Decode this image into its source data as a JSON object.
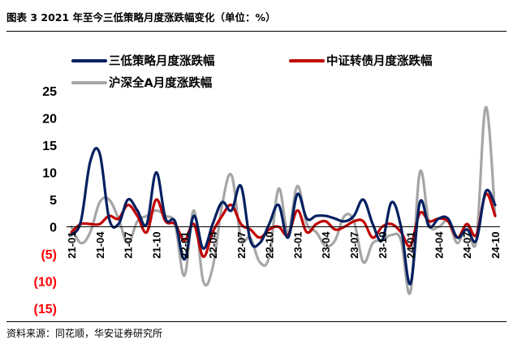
{
  "figure_title": "图表 3  2021 年至今三低策略月度涨跌幅变化（单位：%）",
  "source": "资料来源：同花顺，华安证券研究所",
  "chart_data": {
    "type": "line",
    "title": "",
    "xlabel": "",
    "ylabel": "",
    "ylim": [
      -15,
      25
    ],
    "yticks": [
      {
        "value": 25,
        "label": "25"
      },
      {
        "value": 20,
        "label": "20"
      },
      {
        "value": 15,
        "label": "15"
      },
      {
        "value": 10,
        "label": "10"
      },
      {
        "value": 5,
        "label": "5"
      },
      {
        "value": 0,
        "label": "0"
      },
      {
        "value": -5,
        "label": "(5)"
      },
      {
        "value": -10,
        "label": "(10)"
      },
      {
        "value": -15,
        "label": "(15)"
      }
    ],
    "negative_tick_color": "#ff0000",
    "grid": false,
    "legend_position": "top",
    "x": [
      "21-01",
      "21-02",
      "21-03",
      "21-04",
      "21-05",
      "21-06",
      "21-07",
      "21-08",
      "21-09",
      "21-10",
      "21-11",
      "21-12",
      "22-01",
      "22-02",
      "22-03",
      "22-04",
      "22-05",
      "22-06",
      "22-07",
      "22-08",
      "22-09",
      "22-10",
      "22-11",
      "22-12",
      "23-01",
      "23-02",
      "23-03",
      "23-04",
      "23-05",
      "23-06",
      "23-07",
      "23-08",
      "23-09",
      "23-10",
      "23-11",
      "23-12",
      "24-01",
      "24-02",
      "24-03",
      "24-04",
      "24-05",
      "24-06",
      "24-07",
      "24-08",
      "24-09",
      "24-10"
    ],
    "x_tick_labels": [
      "21-01",
      "21-04",
      "21-07",
      "21-10",
      "22-01",
      "22-04",
      "22-07",
      "22-10",
      "23-01",
      "23-04",
      "23-07",
      "23-10",
      "24-01",
      "24-04",
      "24-07",
      "24-10"
    ],
    "series": [
      {
        "name": "三低策略月度涨跌幅",
        "color": "#002060",
        "values": [
          -1.5,
          1.0,
          12.0,
          13.5,
          1.5,
          0.5,
          5.0,
          3.0,
          0.5,
          10.0,
          1.5,
          1.0,
          -6.0,
          2.0,
          -4.0,
          0.5,
          4.5,
          3.0,
          7.5,
          -2.5,
          -3.0,
          0.5,
          4.0,
          -2.0,
          6.0,
          1.5,
          2.0,
          2.0,
          1.5,
          1.0,
          2.0,
          5.0,
          0.5,
          -2.5,
          4.5,
          0.0,
          -10.5,
          4.5,
          0.0,
          1.5,
          1.5,
          -2.0,
          -0.5,
          -2.5,
          6.5,
          4.0
        ]
      },
      {
        "name": "中证转债月度涨跌幅",
        "color": "#c00000",
        "values": [
          -1.0,
          0.5,
          0.5,
          0.5,
          2.0,
          1.5,
          4.0,
          2.0,
          -1.0,
          5.0,
          1.0,
          0.5,
          -2.5,
          0.5,
          -5.5,
          -1.0,
          2.0,
          4.0,
          0.5,
          -0.5,
          -2.0,
          -0.5,
          0.0,
          -1.5,
          3.0,
          -1.0,
          0.5,
          1.0,
          -0.5,
          0.0,
          1.0,
          1.0,
          -2.0,
          0.0,
          0.5,
          -1.0,
          -3.5,
          2.5,
          1.0,
          1.5,
          1.0,
          -2.0,
          0.5,
          -1.5,
          6.0,
          2.0
        ]
      },
      {
        "name": "沪深全A月度涨跌幅",
        "color": "#a6a6a6",
        "values": [
          0.0,
          -3.0,
          -1.0,
          4.5,
          5.0,
          1.5,
          -3.0,
          1.0,
          2.0,
          3.0,
          2.0,
          0.5,
          -9.0,
          3.0,
          -10.0,
          -7.5,
          4.0,
          9.5,
          -2.0,
          -2.0,
          -6.5,
          -5.5,
          7.0,
          -1.0,
          7.5,
          0.5,
          -1.0,
          -3.5,
          -2.5,
          2.0,
          1.0,
          -6.5,
          -3.0,
          -2.5,
          -1.5,
          -2.5,
          -12.0,
          10.0,
          0.5,
          0.0,
          1.0,
          -3.0,
          0.5,
          -2.5,
          22.0,
          2.0
        ]
      }
    ]
  }
}
